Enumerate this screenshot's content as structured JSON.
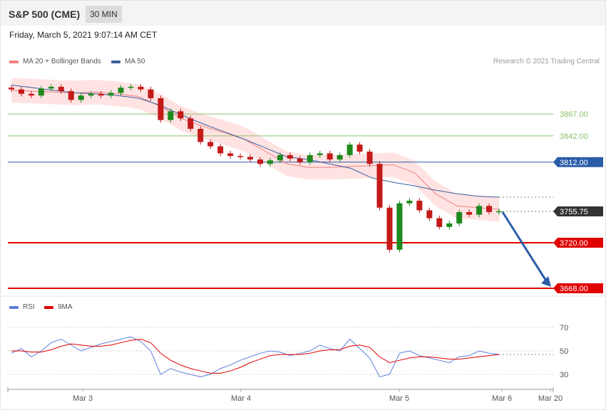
{
  "header": {
    "title": "S&P 500 (CME)",
    "timeframe": "30 MIN"
  },
  "datetime": "Friday, March 5, 2021 9:07:14 AM CET",
  "legend": {
    "main": [
      {
        "label": "MA 20 + Bollinger Bands",
        "color": "#f08080"
      },
      {
        "label": "MA 50",
        "color": "#3a5f9f"
      }
    ],
    "rsi": [
      {
        "label": "RSI",
        "color": "#5b7fdc"
      },
      {
        "label": "9MA",
        "color": "#e00000"
      }
    ]
  },
  "credit": "Research © 2021 Trading Central",
  "colors": {
    "up": "#1e8a1e",
    "down": "#c41a1a",
    "resistance": "#8cc26a",
    "pivot": "#2b5ca8",
    "support": "#e00000",
    "arrow": "#2b5ca8",
    "last": "#333333"
  },
  "chart_data": {
    "type": "line",
    "series": [
      {
        "name": "MA 20 + Bollinger Bands",
        "values": [
          3894,
          3893,
          3892,
          3891,
          3892,
          3890,
          3887,
          3876,
          3862,
          3853,
          3846,
          3838,
          3824,
          3810,
          3806,
          3806,
          3807,
          3808,
          3809,
          3800,
          3776,
          3762,
          3760,
          3758
        ]
      },
      {
        "name": "MA 50",
        "values": [
          3900,
          3897,
          3894,
          3891,
          3890,
          3888,
          3885,
          3877,
          3866,
          3856,
          3847,
          3838,
          3828,
          3818,
          3815,
          3810,
          3805,
          3794,
          3789,
          3785,
          3780,
          3776,
          3773,
          3772
        ]
      }
    ],
    "candles_close": [
      3895,
      3890,
      3888,
      3896,
      3898,
      3893,
      3883,
      3888,
      3890,
      3888,
      3891,
      3897,
      3898,
      3895,
      3885,
      3860,
      3870,
      3862,
      3850,
      3835,
      3830,
      3822,
      3819,
      3818,
      3815,
      3810,
      3814,
      3820,
      3816,
      3812,
      3820,
      3822,
      3815,
      3820,
      3832,
      3824,
      3810,
      3760,
      3712,
      3765,
      3768,
      3757,
      3748,
      3738,
      3742,
      3755,
      3752,
      3762,
      3755,
      3756
    ],
    "levels": [
      {
        "label": "3867.00",
        "kind": "resistance"
      },
      {
        "label": "3842.00",
        "kind": "resistance"
      },
      {
        "label": "3812.00",
        "kind": "pivot"
      },
      {
        "label": "3755.75",
        "kind": "last"
      },
      {
        "label": "3720.00",
        "kind": "support"
      },
      {
        "label": "3668.00",
        "kind": "support"
      }
    ],
    "rsi": {
      "ticks": [
        "70",
        "50",
        "30"
      ],
      "ylim": [
        15,
        80
      ],
      "rsi_values": [
        48,
        52,
        45,
        50,
        57,
        60,
        55,
        50,
        53,
        56,
        58,
        60,
        62,
        58,
        50,
        30,
        35,
        32,
        30,
        28,
        30,
        35,
        38,
        42,
        45,
        48,
        50,
        49,
        46,
        48,
        50,
        55,
        52,
        50,
        60,
        52,
        44,
        28,
        30,
        48,
        50,
        46,
        44,
        42,
        40,
        45,
        46,
        50,
        48,
        47
      ],
      "ma_values": [
        50,
        50,
        49,
        49,
        51,
        54,
        56,
        55,
        54,
        54,
        55,
        57,
        59,
        60,
        57,
        48,
        42,
        38,
        35,
        33,
        31,
        31,
        33,
        36,
        40,
        43,
        46,
        47,
        47,
        47,
        48,
        50,
        51,
        51,
        54,
        55,
        53,
        45,
        40,
        42,
        44,
        45,
        45,
        44,
        43,
        43,
        44,
        45,
        46,
        47
      ]
    },
    "x_ticks": [
      "Mar 3",
      "Mar 4",
      "Mar 5",
      "Mar 6",
      "Mar 20"
    ]
  }
}
